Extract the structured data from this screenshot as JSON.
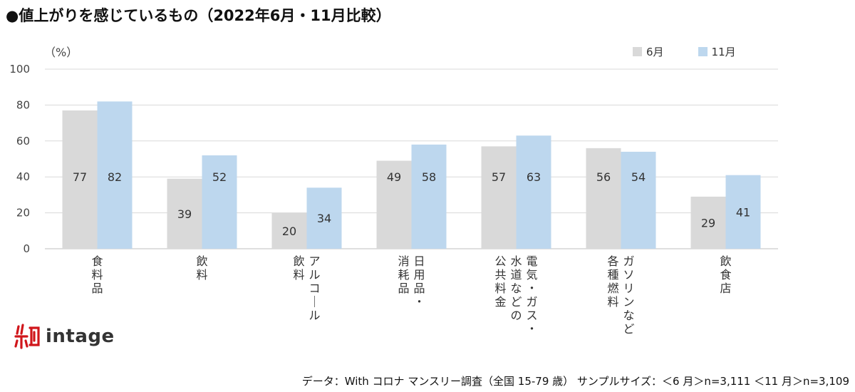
{
  "title": "●値上がりを感じているもの（2022年6月・11月比較）",
  "unit_label": "（%）",
  "footer": "データ：With コロナ マンスリー調査（全国 15-79 歳） サンプルサイズ：＜6 月＞n=3,111 ＜11 月＞n=3,109",
  "logo": {
    "text": "intage",
    "icon": "intage-logo-icon"
  },
  "colors": {
    "june": "#d9d9d9",
    "november": "#bdd7ee",
    "grid": "#d9d9d9"
  },
  "chart_data": {
    "type": "bar",
    "title": "値上がりを感じているもの（2022年6月・11月比較）",
    "ylabel": "（%）",
    "ylim": [
      0,
      100
    ],
    "yticks": [
      0,
      20,
      40,
      60,
      80,
      100
    ],
    "grid": true,
    "legend_position": "top-right",
    "categories": [
      [
        "食料品"
      ],
      [
        "飲料"
      ],
      [
        "アルコール",
        "飲料"
      ],
      [
        "日用品・",
        "消耗品"
      ],
      [
        "電気・ガス・",
        "水道などの",
        "公共料金"
      ],
      [
        "ガソリンなど",
        "各種燃料"
      ],
      [
        "飲食店"
      ]
    ],
    "series": [
      {
        "name": "6月",
        "values": [
          77,
          39,
          20,
          49,
          57,
          56,
          29
        ]
      },
      {
        "name": "11月",
        "values": [
          82,
          52,
          34,
          58,
          63,
          54,
          41
        ]
      }
    ]
  }
}
